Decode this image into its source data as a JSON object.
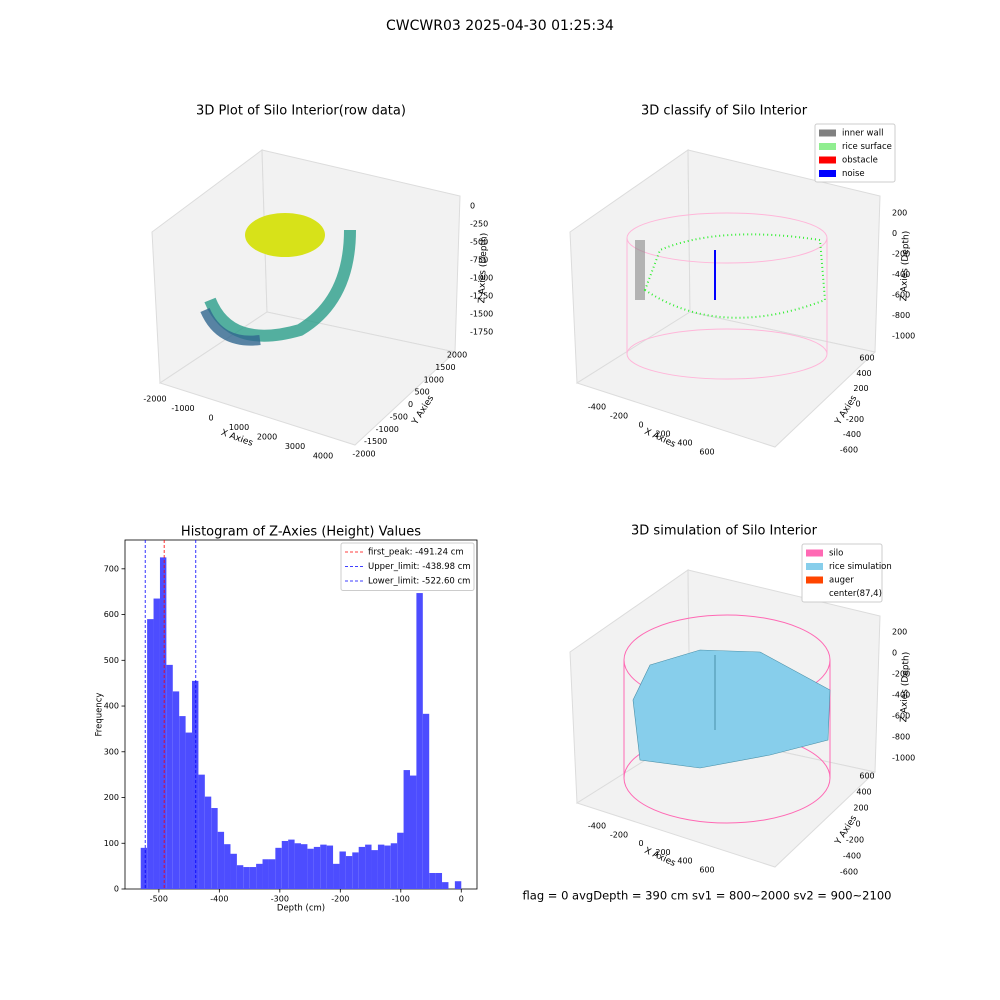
{
  "title": "CWCWR03 2025-04-30 01:25:34",
  "footer": "flag = 0     avgDepth = 390 cm  sv1 = 800~2000  sv2 = 900~2100",
  "chart_data": [
    {
      "type": "scatter3d",
      "title": "3D Plot of Silo Interior(row data)",
      "xlabel": "X Axies",
      "ylabel": "Y Axies",
      "zlabel": "Z Axies (Depth)",
      "xticks": [
        -2000,
        -1000,
        0,
        1000,
        2000,
        3000,
        4000
      ],
      "yticks": [
        -2000,
        -1500,
        -1000,
        -500,
        0,
        500,
        1000,
        1500,
        2000
      ],
      "zticks": [
        0,
        -250,
        -500,
        -750,
        -1000,
        -1250,
        -1500,
        -1750
      ]
    },
    {
      "type": "classify3d",
      "title": "3D classify of Silo Interior",
      "xlabel": "X Axies",
      "ylabel": "Y Axies",
      "zlabel": "Z Axies (Depth)",
      "xticks": [
        -400,
        -200,
        0,
        200,
        400,
        600
      ],
      "yticks": [
        -600,
        -400,
        -200,
        0,
        200,
        400,
        600
      ],
      "zticks": [
        200,
        0,
        -200,
        -400,
        -600,
        -800,
        -1000
      ],
      "legend": [
        {
          "name": "inner wall",
          "color": "#808080"
        },
        {
          "name": "rice surface",
          "color": "#90ee90"
        },
        {
          "name": "obstacle",
          "color": "#ff0000"
        },
        {
          "name": "noise",
          "color": "#0000ff"
        }
      ]
    },
    {
      "type": "histogram",
      "title": "Histogram of Z-Axies (Height) Values",
      "xlabel": "Depth (cm)",
      "ylabel": "Frequency",
      "color": "#4d4dff",
      "bins": [
        -530,
        -519.4,
        -508.8,
        -498.2,
        -487.6,
        -477,
        -466.4,
        -455.8,
        -445.2,
        -434.6,
        -424,
        -413.4,
        -402.8,
        -392.2,
        -381.6,
        -371,
        -360.4,
        -349.8,
        -339.2,
        -328.6,
        -318,
        -307.4,
        -296.8,
        -286.2,
        -275.6,
        -265,
        -254.4,
        -243.8,
        -233.2,
        -222.6,
        -212,
        -201.4,
        -190.8,
        -180.2,
        -169.6,
        -159,
        -148.4,
        -137.8,
        -127.2,
        -116.6,
        -106,
        -95.4,
        -84.8,
        -74.2,
        -63.6,
        -53,
        -42.4,
        -31.8,
        -21.2,
        -10.6,
        0
      ],
      "counts": [
        90,
        590,
        635,
        725,
        490,
        432,
        378,
        342,
        455,
        250,
        202,
        177,
        125,
        98,
        77,
        52,
        48,
        48,
        55,
        65,
        65,
        90,
        105,
        108,
        100,
        98,
        88,
        92,
        97,
        95,
        55,
        82,
        72,
        80,
        92,
        97,
        85,
        97,
        95,
        100,
        123,
        260,
        248,
        647,
        383,
        35,
        35,
        15,
        0,
        17
      ],
      "xlim": [
        -556,
        26
      ],
      "ylim": [
        0,
        763
      ],
      "xticks": [
        -500,
        -400,
        -300,
        -200,
        -100,
        0
      ],
      "yticks": [
        0,
        100,
        200,
        300,
        400,
        500,
        600,
        700
      ],
      "vlines": [
        {
          "name": "first_peak: -491.24 cm",
          "value": -491.24,
          "color": "#ff0000"
        },
        {
          "name": "Upper_limit: -438.98 cm",
          "value": -438.98,
          "color": "#0000ff"
        },
        {
          "name": "Lower_limit: -522.60 cm",
          "value": -522.6,
          "color": "#0000ff"
        }
      ]
    },
    {
      "type": "simulation3d",
      "title": "3D simulation of Silo Interior",
      "xlabel": "X Axies",
      "ylabel": "Y Axies",
      "zlabel": "Z Axies (Depth)",
      "xticks": [
        -400,
        -200,
        0,
        200,
        400,
        600
      ],
      "yticks": [
        -600,
        -400,
        -200,
        0,
        200,
        400,
        600
      ],
      "zticks": [
        200,
        0,
        -200,
        -400,
        -600,
        -800,
        -1000
      ],
      "legend": [
        {
          "name": "silo",
          "color": "#ff69b4"
        },
        {
          "name": "rice simulation",
          "color": "#87ceeb"
        },
        {
          "name": "auger",
          "color": "#ff4500"
        },
        {
          "name": "center(87,4)",
          "color": null
        }
      ]
    }
  ]
}
